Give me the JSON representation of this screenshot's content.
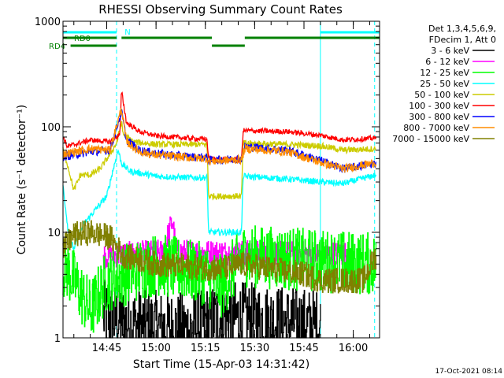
{
  "chart_data": {
    "type": "line",
    "title": "RHESSI Observing Summary Count Rates",
    "xlabel": "Start Time (15-Apr-03 14:31:42)",
    "ylabel": "Count Rate (s⁻¹ detector⁻¹)",
    "y_scale": "log",
    "ylim": [
      1,
      1000
    ],
    "xlim": [
      "14:31:42",
      "16:08:00"
    ],
    "x_ticks": [
      "14:45",
      "15:00",
      "15:15",
      "15:30",
      "15:45",
      "16:00"
    ],
    "y_ticks": [
      "1",
      "10",
      "100",
      "1000"
    ],
    "legend_header": [
      "Det 1,3,4,5,6,9,",
      "FDecim 1, Att 0"
    ],
    "legend_position": "right",
    "timestamp": "17-Oct-2021 08:14",
    "flags": {
      "N_label": "N",
      "RD0_label": "RD0",
      "RD4_label": "RD4",
      "night_intervals": [
        [
          "14:31:42",
          "14:48:00"
        ],
        [
          "15:50:00",
          "16:08:00"
        ]
      ],
      "rd0_intervals": [
        [
          "14:31:42",
          "14:48:00"
        ],
        [
          "14:49:30",
          "15:17:00"
        ],
        [
          "15:27:00",
          "16:08:00"
        ]
      ],
      "rd4_intervals": [
        [
          "14:34:00",
          "14:48:00"
        ],
        [
          "15:17:00",
          "15:27:00"
        ]
      ],
      "saa_boundaries": [
        "14:48:00",
        "15:50:00",
        "16:06:30"
      ],
      "colors": {
        "night": "#00ffff",
        "rd": "#008000"
      }
    },
    "series": [
      {
        "name": "3 - 6 keV",
        "color": "#000000",
        "noise": 0.35,
        "step": true,
        "points": [
          [
            "14:44:00",
            1.6
          ],
          [
            "14:55:00",
            1.3
          ],
          [
            "15:10:00",
            1.2
          ],
          [
            "15:20:00",
            1.6
          ],
          [
            "15:50:00",
            1.3
          ]
        ]
      },
      {
        "name": "6 - 12 keV",
        "color": "#ff00ff",
        "noise": 0.12,
        "step": true,
        "points": [
          [
            "14:44:00",
            6.0
          ],
          [
            "15:02:00",
            6.5
          ],
          [
            "15:05:00",
            13.0
          ],
          [
            "15:06:00",
            6.5
          ],
          [
            "15:58:00",
            6.2
          ]
        ]
      },
      {
        "name": "12 - 25 keV",
        "color": "#00ff00",
        "noise": 0.3,
        "step": true,
        "points": [
          [
            "14:31:42",
            4.5
          ],
          [
            "14:33:00",
            4.5
          ],
          [
            "14:40:00",
            1.8
          ],
          [
            "14:45:00",
            3.5
          ],
          [
            "15:00:00",
            5.0
          ],
          [
            "15:15:00",
            4.0
          ],
          [
            "15:20:00",
            3.0
          ],
          [
            "15:26:00",
            6.0
          ],
          [
            "15:45:00",
            5.5
          ],
          [
            "16:07:00",
            5.0
          ]
        ]
      },
      {
        "name": "25 - 50 keV",
        "color": "#00ffff",
        "noise": 0.03,
        "step": false,
        "points": [
          [
            "14:31:42",
            28
          ],
          [
            "14:33:30",
            9
          ],
          [
            "14:35:00",
            7
          ],
          [
            "14:38:00",
            12
          ],
          [
            "14:42:00",
            17
          ],
          [
            "14:45:00",
            22
          ],
          [
            "14:47:00",
            40
          ],
          [
            "14:48:30",
            60
          ],
          [
            "14:49:30",
            45
          ],
          [
            "14:52:00",
            38
          ],
          [
            "15:00:00",
            34
          ],
          [
            "15:10:00",
            33
          ],
          [
            "15:15:30",
            33
          ],
          [
            "15:16:00",
            10
          ],
          [
            "15:26:00",
            10
          ],
          [
            "15:26:30",
            34
          ],
          [
            "15:40:00",
            32
          ],
          [
            "15:50:00",
            30
          ],
          [
            "15:57:00",
            29
          ],
          [
            "16:07:00",
            35
          ]
        ]
      },
      {
        "name": "50 - 100 keV",
        "color": "#cccc00",
        "noise": 0.03,
        "step": false,
        "points": [
          [
            "14:31:42",
            60
          ],
          [
            "14:33:00",
            45
          ],
          [
            "14:35:00",
            25
          ],
          [
            "14:37:00",
            35
          ],
          [
            "14:40:00",
            35
          ],
          [
            "14:43:00",
            40
          ],
          [
            "14:46:00",
            55
          ],
          [
            "14:48:00",
            70
          ],
          [
            "14:49:30",
            110
          ],
          [
            "14:50:00",
            85
          ],
          [
            "14:53:00",
            72
          ],
          [
            "15:00:00",
            68
          ],
          [
            "15:15:30",
            68
          ],
          [
            "15:16:00",
            22
          ],
          [
            "15:26:00",
            22
          ],
          [
            "15:26:30",
            70
          ],
          [
            "15:40:00",
            68
          ],
          [
            "15:50:00",
            66
          ],
          [
            "15:57:00",
            60
          ],
          [
            "16:07:00",
            62
          ]
        ]
      },
      {
        "name": "100 - 300 keV",
        "color": "#ff0000",
        "noise": 0.025,
        "step": false,
        "points": [
          [
            "14:31:42",
            80
          ],
          [
            "14:33:00",
            65
          ],
          [
            "14:40:00",
            75
          ],
          [
            "14:46:00",
            72
          ],
          [
            "14:49:00",
            85
          ],
          [
            "14:49:30",
            220
          ],
          [
            "14:51:00",
            110
          ],
          [
            "14:55:00",
            90
          ],
          [
            "15:00:00",
            82
          ],
          [
            "15:10:00",
            78
          ],
          [
            "15:15:30",
            76
          ],
          [
            "15:16:00",
            50
          ],
          [
            "15:26:00",
            48
          ],
          [
            "15:26:30",
            92
          ],
          [
            "15:40:00",
            90
          ],
          [
            "15:50:00",
            83
          ],
          [
            "15:57:00",
            75
          ],
          [
            "16:07:00",
            78
          ]
        ]
      },
      {
        "name": "300 - 800 keV",
        "color": "#0000ff",
        "noise": 0.04,
        "step": false,
        "points": [
          [
            "14:31:42",
            52
          ],
          [
            "14:40:00",
            58
          ],
          [
            "14:46:00",
            60
          ],
          [
            "14:49:30",
            140
          ],
          [
            "14:51:00",
            75
          ],
          [
            "14:55:00",
            60
          ],
          [
            "15:00:00",
            56
          ],
          [
            "15:10:00",
            52
          ],
          [
            "15:15:30",
            51
          ],
          [
            "15:16:00",
            48
          ],
          [
            "15:26:00",
            50
          ],
          [
            "15:27:00",
            65
          ],
          [
            "15:40:00",
            60
          ],
          [
            "15:50:00",
            48
          ],
          [
            "15:57:00",
            40
          ],
          [
            "16:07:00",
            45
          ]
        ]
      },
      {
        "name": "800 - 7000 keV",
        "color": "#ff8c00",
        "noise": 0.04,
        "step": false,
        "points": [
          [
            "14:31:42",
            55
          ],
          [
            "14:40:00",
            62
          ],
          [
            "14:46:00",
            60
          ],
          [
            "14:49:30",
            150
          ],
          [
            "14:51:00",
            72
          ],
          [
            "14:55:00",
            58
          ],
          [
            "15:00:00",
            54
          ],
          [
            "15:10:00",
            51
          ],
          [
            "15:15:30",
            50
          ],
          [
            "15:16:00",
            47
          ],
          [
            "15:26:00",
            49
          ],
          [
            "15:27:00",
            62
          ],
          [
            "15:40:00",
            58
          ],
          [
            "15:50:00",
            46
          ],
          [
            "15:57:00",
            40
          ],
          [
            "16:07:00",
            46
          ]
        ]
      },
      {
        "name": "7000 - 15000 keV",
        "color": "#808000",
        "noise": 0.12,
        "step": true,
        "points": [
          [
            "14:31:42",
            7.0
          ],
          [
            "14:35:00",
            9.5
          ],
          [
            "14:40:00",
            10.0
          ],
          [
            "14:46:00",
            9.0
          ],
          [
            "14:50:00",
            6.0
          ],
          [
            "15:00:00",
            5.0
          ],
          [
            "15:20:00",
            4.5
          ],
          [
            "15:26:00",
            5.0
          ],
          [
            "15:45:00",
            4.0
          ],
          [
            "15:50:00",
            3.5
          ],
          [
            "16:03:00",
            3.5
          ],
          [
            "16:06:00",
            5.5
          ],
          [
            "16:07:00",
            6.0
          ]
        ]
      }
    ]
  }
}
